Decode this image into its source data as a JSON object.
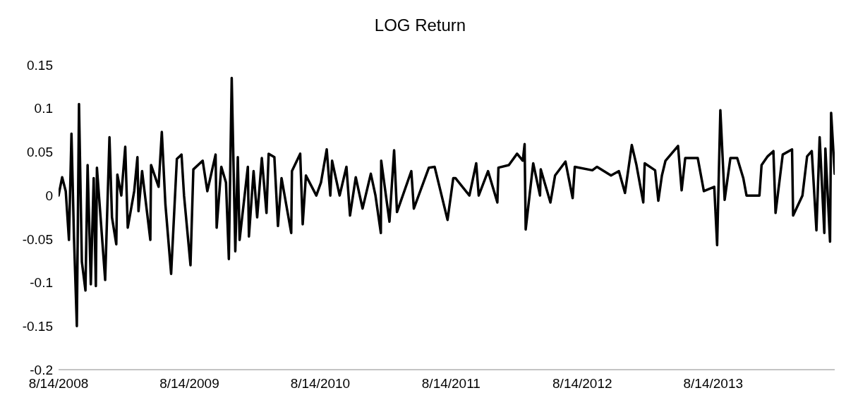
{
  "chart_data": {
    "type": "line",
    "title": "LOG Return",
    "x": [
      "2008-08-14",
      "2008-08-24",
      "2008-09-03",
      "2008-09-12",
      "2008-09-19",
      "2008-09-26",
      "2008-10-04",
      "2008-10-10",
      "2008-10-18",
      "2008-10-28",
      "2008-11-03",
      "2008-11-12",
      "2008-11-20",
      "2008-11-26",
      "2008-11-29",
      "2008-12-22",
      "2009-01-03",
      "2009-01-10",
      "2009-01-22",
      "2009-01-25",
      "2009-02-05",
      "2009-02-16",
      "2009-02-23",
      "2009-03-13",
      "2009-03-22",
      "2009-03-25",
      "2009-04-04",
      "2009-04-27",
      "2009-04-29",
      "2009-05-20",
      "2009-05-29",
      "2009-06-08",
      "2009-06-24",
      "2009-07-10",
      "2009-07-23",
      "2009-07-30",
      "2009-08-17",
      "2009-08-25",
      "2009-09-20",
      "2009-10-03",
      "2009-10-26",
      "2009-10-29",
      "2009-11-11",
      "2009-11-24",
      "2009-12-02",
      "2009-12-10",
      "2009-12-20",
      "2009-12-27",
      "2010-01-01",
      "2010-01-24",
      "2010-01-27",
      "2010-02-09",
      "2010-02-19",
      "2010-03-04",
      "2010-03-17",
      "2010-03-23",
      "2010-04-08",
      "2010-04-18",
      "2010-04-28",
      "2010-05-25",
      "2010-05-27",
      "2010-06-19",
      "2010-06-26",
      "2010-07-05",
      "2010-08-03",
      "2010-08-16",
      "2010-09-01",
      "2010-09-11",
      "2010-09-16",
      "2010-10-07",
      "2010-10-26",
      "2010-11-05",
      "2010-11-21",
      "2010-12-10",
      "2011-01-02",
      "2011-01-15",
      "2011-01-30",
      "2011-01-31",
      "2011-02-23",
      "2011-03-08",
      "2011-03-16",
      "2011-04-25",
      "2011-05-02",
      "2011-06-13",
      "2011-06-29",
      "2011-08-04",
      "2011-08-20",
      "2011-08-26",
      "2011-10-04",
      "2011-10-23",
      "2011-10-30",
      "2011-11-25",
      "2011-12-21",
      "2011-12-24",
      "2012-01-22",
      "2012-02-14",
      "2012-03-01",
      "2012-03-06",
      "2012-03-09",
      "2012-03-30",
      "2012-04-18",
      "2012-04-20",
      "2012-05-17",
      "2012-05-30",
      "2012-06-28",
      "2012-07-18",
      "2012-07-24",
      "2012-09-11",
      "2012-09-24",
      "2012-11-02",
      "2012-11-24",
      "2012-12-11",
      "2012-12-30",
      "2013-01-12",
      "2013-01-31",
      "2013-02-04",
      "2013-03-05",
      "2013-03-14",
      "2013-03-24",
      "2013-04-03",
      "2013-05-08",
      "2013-05-18",
      "2013-05-28",
      "2013-07-02",
      "2013-07-19",
      "2013-08-17",
      "2013-08-25",
      "2013-09-03",
      "2013-09-15",
      "2013-10-01",
      "2013-10-20",
      "2013-11-06",
      "2013-11-15",
      "2013-12-21",
      "2013-12-27",
      "2014-01-13",
      "2014-01-29",
      "2014-02-04",
      "2014-02-24",
      "2014-03-22",
      "2014-03-25",
      "2014-04-20",
      "2014-05-03",
      "2014-05-16",
      "2014-05-29",
      "2014-06-07",
      "2014-06-20",
      "2014-06-23",
      "2014-07-06",
      "2014-07-09",
      "2014-07-19"
    ],
    "series": [
      {
        "color": "#000000",
        "values": [
          0,
          0.021,
          0.005,
          -0.051,
          0.071,
          -0.048,
          -0.15,
          0.105,
          -0.076,
          -0.109,
          0.035,
          -0.102,
          0.02,
          -0.104,
          0.032,
          -0.097,
          0.067,
          -0.025,
          -0.056,
          0.024,
          0,
          0.056,
          -0.037,
          0.005,
          0.044,
          -0.018,
          0.028,
          -0.051,
          0.035,
          0.01,
          0.073,
          -0.01,
          -0.09,
          0.042,
          0.047,
          0,
          -0.08,
          0.03,
          0.04,
          0.005,
          0.047,
          -0.037,
          0.033,
          0.015,
          -0.073,
          0.135,
          -0.064,
          0.044,
          -0.051,
          0.033,
          -0.047,
          0.028,
          -0.025,
          0.043,
          -0.02,
          0.048,
          0.044,
          -0.035,
          0.02,
          -0.043,
          0.028,
          0.048,
          -0.033,
          0.023,
          0,
          0.015,
          0.053,
          0,
          0.04,
          0,
          0.033,
          -0.023,
          0.021,
          -0.015,
          0.025,
          0,
          -0.043,
          0.04,
          -0.03,
          0.052,
          -0.019,
          0.028,
          -0.015,
          0.032,
          0.033,
          -0.028,
          0.02,
          0.02,
          0,
          0.037,
          0,
          0.028,
          -0.008,
          0.032,
          0.035,
          0.048,
          0.04,
          0.059,
          -0.039,
          0.037,
          0,
          0.03,
          -0.008,
          0.023,
          0.039,
          -0.003,
          0.033,
          0.029,
          0.033,
          0.023,
          0.028,
          0.003,
          0.058,
          0.035,
          -0.008,
          0.037,
          0.029,
          -0.006,
          0.023,
          0.04,
          0.057,
          0.006,
          0.043,
          0.043,
          0.005,
          0.01,
          -0.057,
          0.098,
          -0.005,
          0.043,
          0.043,
          0.02,
          0,
          0,
          0.035,
          0.045,
          0.051,
          -0.02,
          0.047,
          0.053,
          -0.023,
          0,
          0.045,
          0.051,
          -0.04,
          0.067,
          -0.043,
          0.054,
          -0.053,
          0.095,
          0.025
        ]
      }
    ],
    "xlim": [
      "2008-08-14",
      "2014-07-19"
    ],
    "xticks": [
      {
        "value": "2008-08-14",
        "label": "8/14/2008"
      },
      {
        "value": "2009-08-14",
        "label": "8/14/2009"
      },
      {
        "value": "2010-08-14",
        "label": "8/14/2010"
      },
      {
        "value": "2011-08-14",
        "label": "8/14/2011"
      },
      {
        "value": "2012-08-14",
        "label": "8/14/2012"
      },
      {
        "value": "2013-08-14",
        "label": "8/14/2013"
      }
    ],
    "ylim": [
      -0.2,
      0.15
    ],
    "yticks": [
      -0.2,
      -0.15,
      -0.1,
      -0.05,
      0,
      0.05,
      0.1,
      0.15
    ],
    "grid": false,
    "legend": false,
    "marker": "none",
    "line_style": "solid"
  }
}
